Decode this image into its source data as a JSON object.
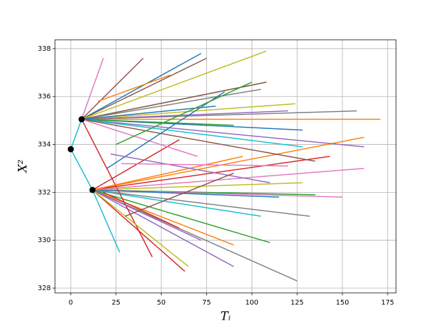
{
  "chart_data": {
    "type": "line",
    "xlabel": "Tᵢ",
    "ylabel": "X²",
    "xlim": [
      -8.7,
      179.6
    ],
    "ylim": [
      327.8,
      338.37
    ],
    "xticks": [
      0,
      25,
      50,
      75,
      100,
      125,
      150,
      175
    ],
    "yticks": [
      328,
      330,
      332,
      334,
      336,
      338
    ],
    "grid": true,
    "series": [
      {
        "color": "#17becf",
        "x": [
          0,
          6
        ],
        "values": [
          333.8,
          335.05
        ]
      },
      {
        "color": "#17becf",
        "x": [
          0,
          12
        ],
        "values": [
          333.8,
          332.1
        ]
      },
      {
        "color": "#1f77b4",
        "x": [
          6,
          72
        ],
        "values": [
          335.05,
          337.8
        ]
      },
      {
        "color": "#ff7f0e",
        "x": [
          6,
          171
        ],
        "values": [
          335.05,
          335.05
        ]
      },
      {
        "color": "#2ca02c",
        "x": [
          6,
          108
        ],
        "values": [
          335.05,
          336.6
        ]
      },
      {
        "color": "#d62728",
        "x": [
          12,
          63
        ],
        "values": [
          332.1,
          328.7
        ]
      },
      {
        "color": "#9467bd",
        "x": [
          12,
          90
        ],
        "values": [
          332.1,
          328.9
        ]
      },
      {
        "color": "#8c564b",
        "x": [
          6,
          75
        ],
        "values": [
          335.05,
          337.6
        ]
      },
      {
        "color": "#e377c2",
        "x": [
          6,
          18
        ],
        "values": [
          335.05,
          337.6
        ]
      },
      {
        "color": "#7f7f7f",
        "x": [
          12,
          125
        ],
        "values": [
          332.1,
          328.3
        ]
      },
      {
        "color": "#bcbd22",
        "x": [
          6,
          108
        ],
        "values": [
          335.05,
          337.9
        ]
      },
      {
        "color": "#17becf",
        "x": [
          12,
          105
        ],
        "values": [
          332.1,
          331.0
        ]
      },
      {
        "color": "#1f77b4",
        "x": [
          6,
          128
        ],
        "values": [
          335.05,
          334.6
        ]
      },
      {
        "color": "#ff7f0e",
        "x": [
          12,
          162
        ],
        "values": [
          332.1,
          334.3
        ]
      },
      {
        "color": "#2ca02c",
        "x": [
          12,
          135
        ],
        "values": [
          332.1,
          331.9
        ]
      },
      {
        "color": "#d62728",
        "x": [
          12,
          143
        ],
        "values": [
          332.1,
          333.5
        ]
      },
      {
        "color": "#9467bd",
        "x": [
          6,
          162
        ],
        "values": [
          335.05,
          333.9
        ]
      },
      {
        "color": "#8c564b",
        "x": [
          6,
          108
        ],
        "values": [
          335.05,
          336.6
        ]
      },
      {
        "color": "#e377c2",
        "x": [
          12,
          150
        ],
        "values": [
          332.1,
          331.8
        ]
      },
      {
        "color": "#7f7f7f",
        "x": [
          6,
          158
        ],
        "values": [
          335.05,
          335.4
        ]
      },
      {
        "color": "#bcbd22",
        "x": [
          12,
          128
        ],
        "values": [
          332.1,
          332.4
        ]
      },
      {
        "color": "#17becf",
        "x": [
          6,
          128
        ],
        "values": [
          335.05,
          333.9
        ]
      },
      {
        "color": "#1f77b4",
        "x": [
          12,
          115
        ],
        "values": [
          332.1,
          331.8
        ]
      },
      {
        "color": "#ff7f0e",
        "x": [
          12,
          90
        ],
        "values": [
          332.1,
          329.8
        ]
      },
      {
        "color": "#2ca02c",
        "x": [
          12,
          110
        ],
        "values": [
          332.1,
          329.9
        ]
      },
      {
        "color": "#d62728",
        "x": [
          6,
          45
        ],
        "values": [
          335.05,
          329.3
        ]
      },
      {
        "color": "#9467bd",
        "x": [
          6,
          120
        ],
        "values": [
          335.05,
          335.4
        ]
      },
      {
        "color": "#8c564b",
        "x": [
          6,
          40
        ],
        "values": [
          335.05,
          337.6
        ]
      },
      {
        "color": "#e377c2",
        "x": [
          12,
          162
        ],
        "values": [
          332.1,
          333.0
        ]
      },
      {
        "color": "#7f7f7f",
        "x": [
          6,
          105
        ],
        "values": [
          335.05,
          336.3
        ]
      },
      {
        "color": "#bcbd22",
        "x": [
          6,
          124
        ],
        "values": [
          335.05,
          335.7
        ]
      },
      {
        "color": "#17becf",
        "x": [
          12,
          27
        ],
        "values": [
          332.1,
          329.5
        ]
      },
      {
        "color": "#1f77b4",
        "x": [
          6,
          80
        ],
        "values": [
          335.05,
          335.6
        ]
      },
      {
        "color": "#ff7f0e",
        "x": [
          12,
          95
        ],
        "values": [
          332.1,
          333.5
        ]
      },
      {
        "color": "#2ca02c",
        "x": [
          6,
          90
        ],
        "values": [
          335.05,
          334.8
        ]
      },
      {
        "color": "#d62728",
        "x": [
          12,
          60
        ],
        "values": [
          332.1,
          334.2
        ]
      },
      {
        "color": "#9467bd",
        "x": [
          12,
          72
        ],
        "values": [
          332.1,
          330.0
        ]
      },
      {
        "color": "#8c564b",
        "x": [
          6,
          135
        ],
        "values": [
          335.05,
          333.3
        ]
      },
      {
        "color": "#e377c2",
        "x": [
          6,
          70
        ],
        "values": [
          335.05,
          333.5
        ]
      },
      {
        "color": "#7f7f7f",
        "x": [
          12,
          132
        ],
        "values": [
          332.1,
          331.0
        ]
      },
      {
        "color": "#bcbd22",
        "x": [
          12,
          65
        ],
        "values": [
          332.1,
          328.9
        ]
      },
      {
        "color": "#d62728",
        "x": [
          18,
          60
        ],
        "values": [
          332.0,
          330.5
        ]
      },
      {
        "color": "#1f77b4",
        "x": [
          20,
          85
        ],
        "values": [
          333.0,
          336.2
        ]
      },
      {
        "color": "#2ca02c",
        "x": [
          25,
          100
        ],
        "values": [
          334.0,
          336.6
        ]
      },
      {
        "color": "#9467bd",
        "x": [
          22,
          110
        ],
        "values": [
          333.6,
          332.4
        ]
      },
      {
        "color": "#ff7f0e",
        "x": [
          15,
          55
        ],
        "values": [
          335.8,
          336.9
        ]
      },
      {
        "color": "#8c564b",
        "x": [
          30,
          90
        ],
        "values": [
          331.0,
          332.8
        ]
      },
      {
        "color": "#e377c2",
        "x": [
          28,
          120
        ],
        "values": [
          333.2,
          333.1
        ]
      }
    ],
    "points": {
      "color": "#000000",
      "x": [
        0,
        6,
        12
      ],
      "values": [
        333.8,
        335.05,
        332.1
      ]
    }
  }
}
